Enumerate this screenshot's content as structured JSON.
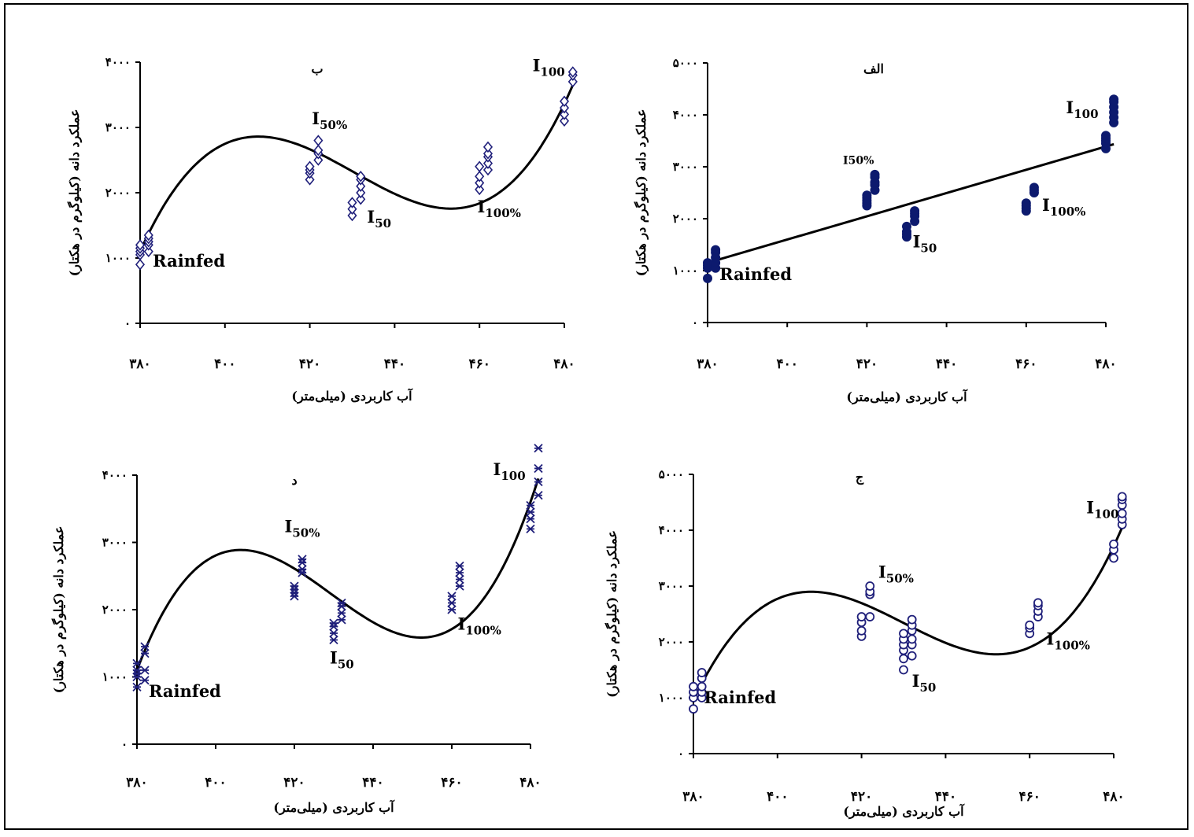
{
  "colors": {
    "marker": "#1F1F7A",
    "marker_fill": "#0D1A6E",
    "fit_line": "#000000",
    "axis": "#000000"
  },
  "chart_data": [
    {
      "id": "a",
      "type": "scatter",
      "panel_label": "الف",
      "marker": "filled-circle",
      "xlabel": "آب کاربردی (میلی‌متر)",
      "ylabel": "عملکرد دانه (کیلوگرم در هکتار)",
      "xlim": [
        380,
        480
      ],
      "ylim": [
        0,
        5000
      ],
      "xticks": [
        380,
        400,
        420,
        440,
        460,
        480
      ],
      "yticks": [
        0,
        1000,
        2000,
        3000,
        4000,
        5000
      ],
      "xtick_labels": [
        "۳۸۰",
        "۴۰۰",
        "۴۲۰",
        "۴۴۰",
        "۴۶۰",
        "۴۸۰"
      ],
      "ytick_labels": [
        "۰",
        "۱۰۰۰",
        "۲۰۰۰",
        "۳۰۰۰",
        "۴۰۰۰",
        "۵۰۰۰"
      ],
      "fit": {
        "kind": "linear",
        "coef": [
          1150,
          22.4
        ]
      },
      "points": [
        {
          "x": 380,
          "y": 850
        },
        {
          "x": 380,
          "y": 1050
        },
        {
          "x": 380,
          "y": 1100
        },
        {
          "x": 380,
          "y": 1150
        },
        {
          "x": 382,
          "y": 1050
        },
        {
          "x": 382,
          "y": 1150
        },
        {
          "x": 382,
          "y": 1250
        },
        {
          "x": 382,
          "y": 1350
        },
        {
          "x": 382,
          "y": 1400
        },
        {
          "x": 420,
          "y": 2250
        },
        {
          "x": 420,
          "y": 2300
        },
        {
          "x": 420,
          "y": 2350
        },
        {
          "x": 420,
          "y": 2400
        },
        {
          "x": 420,
          "y": 2450
        },
        {
          "x": 422,
          "y": 2550
        },
        {
          "x": 422,
          "y": 2650
        },
        {
          "x": 422,
          "y": 2700
        },
        {
          "x": 422,
          "y": 2800
        },
        {
          "x": 422,
          "y": 2850
        },
        {
          "x": 430,
          "y": 1650
        },
        {
          "x": 430,
          "y": 1700
        },
        {
          "x": 430,
          "y": 1750
        },
        {
          "x": 430,
          "y": 1850
        },
        {
          "x": 432,
          "y": 1950
        },
        {
          "x": 432,
          "y": 2050
        },
        {
          "x": 432,
          "y": 2100
        },
        {
          "x": 432,
          "y": 2150
        },
        {
          "x": 460,
          "y": 2150
        },
        {
          "x": 460,
          "y": 2200
        },
        {
          "x": 460,
          "y": 2250
        },
        {
          "x": 460,
          "y": 2300
        },
        {
          "x": 462,
          "y": 2500
        },
        {
          "x": 462,
          "y": 2550
        },
        {
          "x": 462,
          "y": 2600
        },
        {
          "x": 480,
          "y": 3350
        },
        {
          "x": 480,
          "y": 3450
        },
        {
          "x": 480,
          "y": 3500
        },
        {
          "x": 480,
          "y": 3550
        },
        {
          "x": 480,
          "y": 3600
        },
        {
          "x": 482,
          "y": 3850
        },
        {
          "x": 482,
          "y": 3950
        },
        {
          "x": 482,
          "y": 4050
        },
        {
          "x": 482,
          "y": 4150
        },
        {
          "x": 482,
          "y": 4250
        },
        {
          "x": 482,
          "y": 4300
        }
      ],
      "annotations": [
        {
          "base": "Rainfed",
          "sub": "",
          "x": 383,
          "y": 820,
          "size": "big"
        },
        {
          "base": "I50%",
          "sub": "",
          "x": 414,
          "y": 3050,
          "size": "small"
        },
        {
          "base": "I",
          "sub": "50",
          "x": 431.5,
          "y": 1450,
          "size": "big"
        },
        {
          "base": "I",
          "sub": "100%",
          "x": 464,
          "y": 2150,
          "size": "big"
        },
        {
          "base": "I",
          "sub": "100",
          "x": 470,
          "y": 4030,
          "size": "big"
        }
      ]
    },
    {
      "id": "b",
      "type": "scatter",
      "panel_label": "ب",
      "marker": "open-diamond",
      "xlabel": "آب کاربردی (میلی‌متر)",
      "ylabel": "عملکرد دانه (کیلوگرم در هکتار)",
      "xlim": [
        380,
        480
      ],
      "ylim": [
        0,
        4000
      ],
      "xticks": [
        380,
        400,
        420,
        440,
        460,
        480
      ],
      "yticks": [
        0,
        1000,
        2000,
        3000,
        4000
      ],
      "xtick_labels": [
        "۳۸۰",
        "۴۰۰",
        "۴۲۰",
        "۴۴۰",
        "۴۶۰",
        "۴۸۰"
      ],
      "ytick_labels": [
        "۰",
        "۱۰۰۰",
        "۲۰۰۰",
        "۳۰۰۰",
        "۴۰۰۰"
      ],
      "fit": {
        "kind": "cubic",
        "x_start": 380,
        "x_end": 482,
        "y_start": 1100,
        "y_end": 3650,
        "knots": [
          [
            402,
            2800
          ],
          [
            443,
            1900
          ]
        ]
      },
      "points": [
        {
          "x": 380,
          "y": 900
        },
        {
          "x": 380,
          "y": 1050
        },
        {
          "x": 380,
          "y": 1100
        },
        {
          "x": 380,
          "y": 1150
        },
        {
          "x": 380,
          "y": 1200
        },
        {
          "x": 382,
          "y": 1100
        },
        {
          "x": 382,
          "y": 1200
        },
        {
          "x": 382,
          "y": 1250
        },
        {
          "x": 382,
          "y": 1300
        },
        {
          "x": 382,
          "y": 1350
        },
        {
          "x": 420,
          "y": 2200
        },
        {
          "x": 420,
          "y": 2300
        },
        {
          "x": 420,
          "y": 2350
        },
        {
          "x": 420,
          "y": 2400
        },
        {
          "x": 422,
          "y": 2500
        },
        {
          "x": 422,
          "y": 2600
        },
        {
          "x": 422,
          "y": 2650
        },
        {
          "x": 422,
          "y": 2800
        },
        {
          "x": 430,
          "y": 1650
        },
        {
          "x": 430,
          "y": 1750
        },
        {
          "x": 430,
          "y": 1850
        },
        {
          "x": 432,
          "y": 1900
        },
        {
          "x": 432,
          "y": 2000
        },
        {
          "x": 432,
          "y": 2100
        },
        {
          "x": 432,
          "y": 2200
        },
        {
          "x": 432,
          "y": 2250
        },
        {
          "x": 460,
          "y": 2050
        },
        {
          "x": 460,
          "y": 2150
        },
        {
          "x": 460,
          "y": 2250
        },
        {
          "x": 460,
          "y": 2400
        },
        {
          "x": 462,
          "y": 2350
        },
        {
          "x": 462,
          "y": 2450
        },
        {
          "x": 462,
          "y": 2550
        },
        {
          "x": 462,
          "y": 2600
        },
        {
          "x": 462,
          "y": 2700
        },
        {
          "x": 480,
          "y": 3100
        },
        {
          "x": 480,
          "y": 3200
        },
        {
          "x": 480,
          "y": 3300
        },
        {
          "x": 480,
          "y": 3400
        },
        {
          "x": 482,
          "y": 3700
        },
        {
          "x": 482,
          "y": 3800
        },
        {
          "x": 482,
          "y": 3850
        }
      ],
      "annotations": [
        {
          "base": "Rainfed",
          "sub": "",
          "x": 383,
          "y": 870,
          "size": "big"
        },
        {
          "base": "I",
          "sub": "50%",
          "x": 420.5,
          "y": 3050,
          "size": "big"
        },
        {
          "base": "I",
          "sub": "50",
          "x": 433.5,
          "y": 1540,
          "size": "big"
        },
        {
          "base": "I",
          "sub": "100%",
          "x": 459.5,
          "y": 1700,
          "size": "big"
        },
        {
          "base": "I",
          "sub": "100",
          "x": 472.5,
          "y": 3860,
          "size": "big"
        }
      ]
    },
    {
      "id": "c",
      "type": "scatter",
      "panel_label": "ج",
      "marker": "open-circle",
      "xlabel": "آب کاربردی (میلی‌متر)",
      "ylabel": "عملکرد دانه (کیلوگرم در هکتار)",
      "xlim": [
        380,
        480
      ],
      "ylim": [
        0,
        5000
      ],
      "xticks": [
        380,
        400,
        420,
        440,
        460,
        480
      ],
      "yticks": [
        0,
        1000,
        2000,
        3000,
        4000,
        5000
      ],
      "xtick_labels": [
        "۳۸۰",
        "۴۰۰",
        "۴۲۰",
        "۴۴۰",
        "۴۶۰",
        "۴۸۰"
      ],
      "ytick_labels": [
        "۰",
        "۱۰۰۰",
        "۲۰۰۰",
        "۳۰۰۰",
        "۴۰۰۰",
        "۵۰۰۰"
      ],
      "fit": {
        "kind": "cubic",
        "x_start": 380,
        "x_end": 482,
        "y_start": 950,
        "y_end": 4050,
        "knots": [
          [
            403,
            2850
          ],
          [
            443,
            1900
          ]
        ]
      },
      "points": [
        {
          "x": 380,
          "y": 800
        },
        {
          "x": 380,
          "y": 1000
        },
        {
          "x": 380,
          "y": 1100
        },
        {
          "x": 380,
          "y": 1200
        },
        {
          "x": 382,
          "y": 1000
        },
        {
          "x": 382,
          "y": 1100
        },
        {
          "x": 382,
          "y": 1200
        },
        {
          "x": 382,
          "y": 1350
        },
        {
          "x": 382,
          "y": 1450
        },
        {
          "x": 420,
          "y": 2100
        },
        {
          "x": 420,
          "y": 2200
        },
        {
          "x": 420,
          "y": 2350
        },
        {
          "x": 420,
          "y": 2450
        },
        {
          "x": 422,
          "y": 2450
        },
        {
          "x": 422,
          "y": 2850
        },
        {
          "x": 422,
          "y": 2900
        },
        {
          "x": 422,
          "y": 3000
        },
        {
          "x": 430,
          "y": 1500
        },
        {
          "x": 430,
          "y": 1700
        },
        {
          "x": 430,
          "y": 1850
        },
        {
          "x": 430,
          "y": 1950
        },
        {
          "x": 430,
          "y": 2050
        },
        {
          "x": 430,
          "y": 2150
        },
        {
          "x": 432,
          "y": 1750
        },
        {
          "x": 432,
          "y": 1950
        },
        {
          "x": 432,
          "y": 2050
        },
        {
          "x": 432,
          "y": 2200
        },
        {
          "x": 432,
          "y": 2300
        },
        {
          "x": 432,
          "y": 2400
        },
        {
          "x": 460,
          "y": 2150
        },
        {
          "x": 460,
          "y": 2250
        },
        {
          "x": 460,
          "y": 2300
        },
        {
          "x": 462,
          "y": 2450
        },
        {
          "x": 462,
          "y": 2550
        },
        {
          "x": 462,
          "y": 2650
        },
        {
          "x": 462,
          "y": 2700
        },
        {
          "x": 480,
          "y": 3500
        },
        {
          "x": 480,
          "y": 3650
        },
        {
          "x": 480,
          "y": 3750
        },
        {
          "x": 482,
          "y": 4100
        },
        {
          "x": 482,
          "y": 4200
        },
        {
          "x": 482,
          "y": 4300
        },
        {
          "x": 482,
          "y": 4450
        },
        {
          "x": 482,
          "y": 4550
        },
        {
          "x": 482,
          "y": 4600
        }
      ],
      "annotations": [
        {
          "base": "Rainfed",
          "sub": "",
          "x": 382.5,
          "y": 900,
          "size": "big"
        },
        {
          "base": "I",
          "sub": "50%",
          "x": 424,
          "y": 3150,
          "size": "big"
        },
        {
          "base": "I",
          "sub": "50",
          "x": 432,
          "y": 1200,
          "size": "big"
        },
        {
          "base": "I",
          "sub": "100%",
          "x": 464,
          "y": 1950,
          "size": "big"
        },
        {
          "base": "I",
          "sub": "100",
          "x": 473.5,
          "y": 4300,
          "size": "big"
        }
      ]
    },
    {
      "id": "d",
      "type": "scatter",
      "panel_label": "د",
      "marker": "asterisk",
      "xlabel": "آب کاربردی (میلی‌متر)",
      "ylabel": "عملکرد دانه (کیلوگرم در هکتار)",
      "xlim": [
        380,
        480
      ],
      "ylim": [
        0,
        4000
      ],
      "xticks": [
        380,
        400,
        420,
        440,
        460,
        480
      ],
      "yticks": [
        0,
        1000,
        2000,
        3000,
        4000
      ],
      "xtick_labels": [
        "۳۸۰",
        "۴۰۰",
        "۴۲۰",
        "۴۴۰",
        "۴۶۰",
        "۴۸۰"
      ],
      "ytick_labels": [
        "۰",
        "۱۰۰۰",
        "۲۰۰۰",
        "۳۰۰۰",
        "۴۰۰۰"
      ],
      "fit": {
        "kind": "cubic",
        "x_start": 380,
        "x_end": 482,
        "y_start": 1100,
        "y_end": 3950,
        "knots": [
          [
            402,
            2850
          ],
          [
            442,
            1750
          ]
        ]
      },
      "points": [
        {
          "x": 380,
          "y": 850
        },
        {
          "x": 380,
          "y": 1000
        },
        {
          "x": 380,
          "y": 1050
        },
        {
          "x": 380,
          "y": 1100
        },
        {
          "x": 380,
          "y": 1200
        },
        {
          "x": 382,
          "y": 950
        },
        {
          "x": 382,
          "y": 1100
        },
        {
          "x": 382,
          "y": 1350
        },
        {
          "x": 382,
          "y": 1450
        },
        {
          "x": 420,
          "y": 2200
        },
        {
          "x": 420,
          "y": 2250
        },
        {
          "x": 420,
          "y": 2300
        },
        {
          "x": 420,
          "y": 2350
        },
        {
          "x": 422,
          "y": 2550
        },
        {
          "x": 422,
          "y": 2600
        },
        {
          "x": 422,
          "y": 2700
        },
        {
          "x": 422,
          "y": 2750
        },
        {
          "x": 430,
          "y": 1550
        },
        {
          "x": 430,
          "y": 1650
        },
        {
          "x": 430,
          "y": 1750
        },
        {
          "x": 430,
          "y": 1800
        },
        {
          "x": 432,
          "y": 1850
        },
        {
          "x": 432,
          "y": 1950
        },
        {
          "x": 432,
          "y": 2050
        },
        {
          "x": 432,
          "y": 2100
        },
        {
          "x": 460,
          "y": 2000
        },
        {
          "x": 460,
          "y": 2100
        },
        {
          "x": 460,
          "y": 2200
        },
        {
          "x": 462,
          "y": 2350
        },
        {
          "x": 462,
          "y": 2450
        },
        {
          "x": 462,
          "y": 2550
        },
        {
          "x": 462,
          "y": 2650
        },
        {
          "x": 480,
          "y": 3200
        },
        {
          "x": 480,
          "y": 3350
        },
        {
          "x": 480,
          "y": 3450
        },
        {
          "x": 480,
          "y": 3550
        },
        {
          "x": 482,
          "y": 3700
        },
        {
          "x": 482,
          "y": 3900
        },
        {
          "x": 482,
          "y": 4100
        },
        {
          "x": 482,
          "y": 4400
        }
      ],
      "annotations": [
        {
          "base": "Rainfed",
          "sub": "",
          "x": 383,
          "y": 700,
          "size": "big"
        },
        {
          "base": "I",
          "sub": "50%",
          "x": 417.5,
          "y": 3150,
          "size": "big"
        },
        {
          "base": "I",
          "sub": "50",
          "x": 429,
          "y": 1200,
          "size": "big"
        },
        {
          "base": "I",
          "sub": "100%",
          "x": 461.5,
          "y": 1700,
          "size": "big"
        },
        {
          "base": "I",
          "sub": "100",
          "x": 470.5,
          "y": 4000,
          "size": "big"
        }
      ]
    }
  ]
}
